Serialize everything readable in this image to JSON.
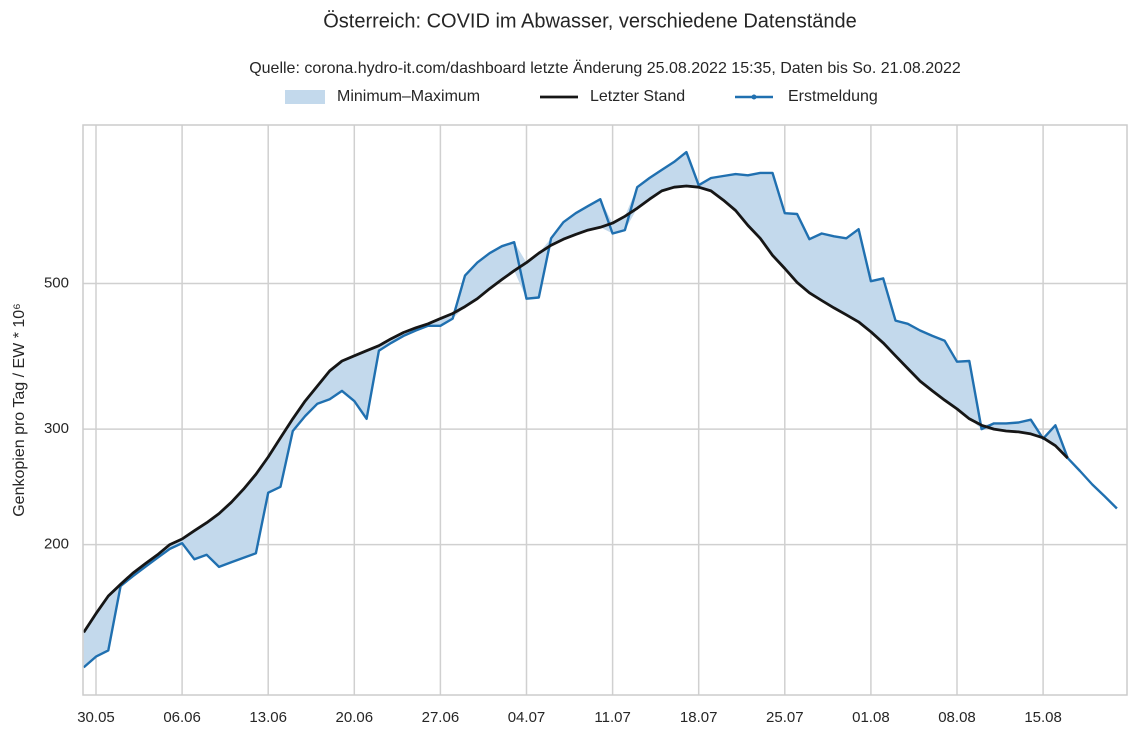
{
  "chart_data": {
    "type": "line",
    "title": "Österreich: COVID im Abwasser, verschiedene Datenstände",
    "subtitle": "Quelle: corona.hydro-it.com/dashboard letzte Änderung 25.08.2022 15:35, Daten bis So. 21.08.2022",
    "ylabel": "Genkopien pro Tag / EW * 10⁶",
    "categories": [
      null,
      "30.05",
      null,
      null,
      null,
      null,
      null,
      null,
      "06.06",
      null,
      null,
      null,
      null,
      null,
      null,
      "13.06",
      null,
      null,
      null,
      null,
      null,
      null,
      "20.06",
      null,
      null,
      null,
      null,
      null,
      null,
      "27.06",
      null,
      null,
      null,
      null,
      null,
      null,
      "04.07",
      null,
      null,
      null,
      null,
      null,
      null,
      "11.07",
      null,
      null,
      null,
      null,
      null,
      null,
      "18.07",
      null,
      null,
      null,
      null,
      null,
      null,
      "25.07",
      null,
      null,
      null,
      null,
      null,
      null,
      "01.08",
      null,
      null,
      null,
      null,
      null,
      null,
      "08.08",
      null,
      null,
      null,
      null,
      null,
      null,
      "15.08",
      null,
      null,
      null,
      null,
      null,
      null
    ],
    "band": {
      "name": "Minimum–Maximum",
      "color": "#c3d9ec",
      "min": [
        130,
        135,
        138,
        173,
        179,
        185,
        191,
        197,
        201,
        190,
        193,
        185,
        188,
        191,
        194,
        240,
        245,
        298,
        314,
        328,
        333,
        343,
        331,
        311,
        395,
        406,
        416,
        424,
        431,
        431,
        442,
        461,
        474,
        491,
        507,
        523,
        474,
        476,
        572,
        584,
        594,
        603,
        609,
        596,
        603,
        651,
        672,
        692,
        701,
        704,
        701,
        692,
        670,
        646,
        613,
        586,
        552,
        527,
        502,
        484,
        471,
        459,
        448,
        437,
        422,
        406,
        388,
        371,
        355,
        343,
        332,
        322,
        311,
        300,
        300,
        298,
        297,
        295,
        290,
        283,
        271,
        259,
        247,
        237,
        227
      ],
      "max": [
        147,
        157,
        167,
        174,
        181,
        187,
        193,
        200,
        204,
        210,
        216,
        223,
        232,
        243,
        256,
        272,
        291,
        311,
        331,
        349,
        368,
        381,
        388,
        395,
        402,
        412,
        421,
        428,
        434,
        442,
        450,
        514,
        538,
        556,
        570,
        578,
        538,
        556,
        586,
        620,
        640,
        656,
        672,
        618,
        633,
        701,
        724,
        745,
        766,
        793,
        706,
        724,
        729,
        734,
        731,
        737,
        737,
        640,
        638,
        584,
        596,
        590,
        586,
        605,
        504,
        509,
        439,
        434,
        424,
        416,
        409,
        380,
        381,
        304,
        306,
        306,
        307,
        310,
        291,
        304,
        271,
        259,
        247,
        237,
        227
      ]
    },
    "series": [
      {
        "name": "Letzter Stand",
        "color": "#161616",
        "values": [
          147,
          157,
          167,
          174,
          181,
          187,
          193,
          200,
          204,
          210,
          216,
          223,
          232,
          243,
          256,
          272,
          291,
          311,
          331,
          349,
          368,
          381,
          388,
          395,
          402,
          412,
          421,
          428,
          434,
          442,
          450,
          461,
          474,
          491,
          507,
          523,
          538,
          556,
          572,
          584,
          594,
          603,
          609,
          618,
          633,
          651,
          672,
          692,
          701,
          704,
          701,
          692,
          670,
          646,
          613,
          586,
          552,
          527,
          502,
          484,
          471,
          459,
          448,
          437,
          422,
          406,
          388,
          371,
          355,
          343,
          332,
          322,
          311,
          304,
          300,
          298,
          297,
          295,
          291,
          283,
          271,
          null,
          null,
          null,
          null
        ]
      },
      {
        "name": "Erstmeldung",
        "color": "#2070b0",
        "values": [
          130,
          135,
          138,
          173,
          179,
          185,
          191,
          197,
          201,
          190,
          193,
          185,
          188,
          191,
          194,
          240,
          245,
          298,
          314,
          328,
          333,
          343,
          331,
          311,
          395,
          406,
          416,
          424,
          431,
          431,
          442,
          514,
          538,
          556,
          570,
          578,
          474,
          476,
          586,
          620,
          640,
          656,
          672,
          596,
          603,
          701,
          724,
          745,
          766,
          793,
          706,
          724,
          729,
          734,
          731,
          737,
          737,
          640,
          638,
          584,
          596,
          590,
          586,
          605,
          504,
          509,
          439,
          434,
          424,
          416,
          409,
          380,
          381,
          300,
          306,
          306,
          307,
          310,
          290,
          304,
          271,
          259,
          247,
          237,
          227
        ]
      }
    ],
    "ylim": [
      118,
      872
    ],
    "yticks": [
      200,
      300,
      500
    ],
    "log_y": true,
    "grid": true,
    "legend": "top"
  }
}
